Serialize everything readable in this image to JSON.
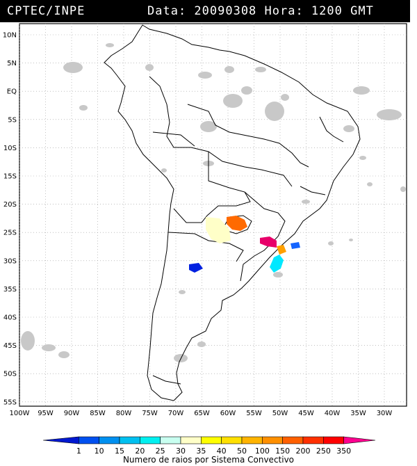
{
  "header": {
    "org": "CPTEC/INPE",
    "datetime": "Data: 20090308 Hora: 1200 GMT"
  },
  "map": {
    "lat_labels": [
      "10N",
      "5N",
      "EQ",
      "5S",
      "10S",
      "15S",
      "20S",
      "25S",
      "30S",
      "35S",
      "40S",
      "45S",
      "50S",
      "55S"
    ],
    "lon_labels": [
      "100W",
      "95W",
      "90W",
      "85W",
      "80W",
      "75W",
      "70W",
      "65W",
      "60W",
      "55W",
      "50W",
      "45W",
      "40W",
      "35W",
      "30W"
    ],
    "grid": true,
    "cloud_color": "#c8c8c8"
  },
  "systems": [
    {
      "name": "system-paraguay-orange",
      "color": "#ff6a00"
    },
    {
      "name": "system-argentina-yellow",
      "color": "#ffffc8"
    },
    {
      "name": "system-brazil-magenta",
      "color": "#e8006a"
    },
    {
      "name": "system-brazil-orange",
      "color": "#ffa000"
    },
    {
      "name": "system-brazil-cyan",
      "color": "#00e8ff"
    },
    {
      "name": "system-brazil-blue",
      "color": "#1464ff"
    },
    {
      "name": "system-argentina-blue",
      "color": "#0020e0"
    }
  ],
  "legend": {
    "caption": "Numero de raios por Sistema Convectivo",
    "values": [
      "1",
      "10",
      "15",
      "20",
      "25",
      "30",
      "35",
      "40",
      "50",
      "100",
      "150",
      "200",
      "250",
      "350"
    ],
    "colors": [
      "#0018d0",
      "#0050f0",
      "#0090f0",
      "#00c0f0",
      "#00f0f0",
      "#c8fff0",
      "#ffffc8",
      "#ffff00",
      "#ffe000",
      "#ffb400",
      "#ff9000",
      "#ff6000",
      "#ff3000",
      "#ff0000",
      "#ff0090"
    ]
  }
}
